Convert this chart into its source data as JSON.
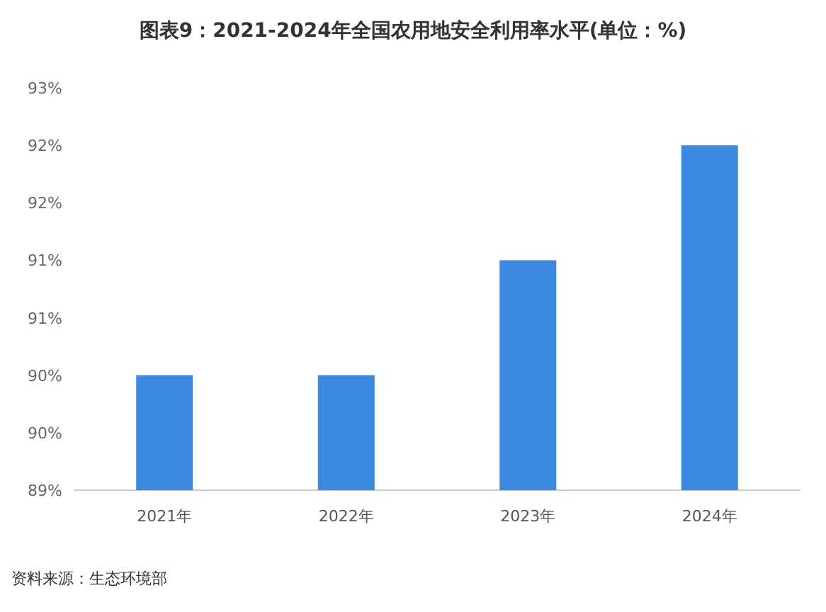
{
  "chart_data": {
    "type": "bar",
    "title": "图表9：2021-2024年全国农用地安全利用率水平(单位：%)",
    "categories": [
      "2021年",
      "2022年",
      "2023年",
      "2024年"
    ],
    "values": [
      90.0,
      90.0,
      91.0,
      92.0
    ],
    "color": "#3b89e3",
    "ylim": [
      89,
      92.5
    ],
    "yticks": [
      {
        "value": 89,
        "label": "89%"
      },
      {
        "value": 89.5,
        "label": "90%"
      },
      {
        "value": 90,
        "label": "90%"
      },
      {
        "value": 90.5,
        "label": "91%"
      },
      {
        "value": 91,
        "label": "91%"
      },
      {
        "value": 91.5,
        "label": "92%"
      },
      {
        "value": 92,
        "label": "92%"
      },
      {
        "value": 92.5,
        "label": "93%"
      }
    ],
    "grid": false,
    "annotations": [
      "资料来源：生态环境部"
    ]
  }
}
